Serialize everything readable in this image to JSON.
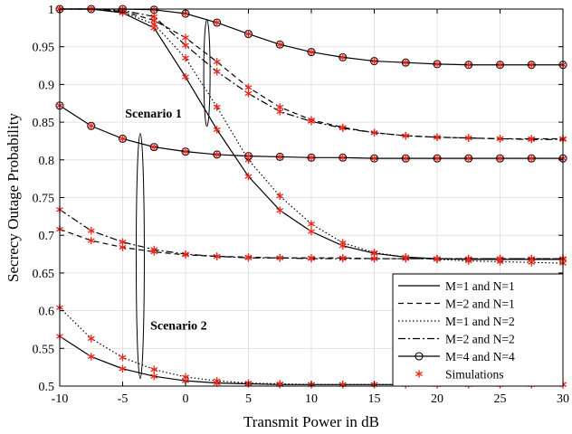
{
  "chart_data": {
    "type": "line",
    "title": "",
    "xlabel": "Transmit Power in dB",
    "ylabel": "Secrecy Outage Probability",
    "xlim": [
      -10,
      30
    ],
    "ylim": [
      0.5,
      1.0
    ],
    "xticks": [
      -10,
      -5,
      0,
      5,
      10,
      15,
      20,
      25,
      30
    ],
    "yticks": [
      0.5,
      0.55,
      0.6,
      0.65,
      0.7,
      0.75,
      0.8,
      0.85,
      0.9,
      0.95,
      1.0
    ],
    "xtick_labels": [
      "-10",
      "-5",
      "0",
      "5",
      "10",
      "15",
      "20",
      "25",
      "30"
    ],
    "ytick_labels": [
      "0.5",
      "0.55",
      "0.6",
      "0.65",
      "0.7",
      "0.75",
      "0.8",
      "0.85",
      "0.9",
      "0.95",
      "1"
    ],
    "grid": true,
    "legend_position": "bottom-right",
    "legend": [
      {
        "label": "M=1 and N=1",
        "style": "solid",
        "marker": "none"
      },
      {
        "label": "M=2 and N=1",
        "style": "dashed",
        "marker": "none"
      },
      {
        "label": "M=1 and N=2",
        "style": "dotted",
        "marker": "none"
      },
      {
        "label": "M=2 and N=2",
        "style": "dashdot",
        "marker": "none"
      },
      {
        "label": "M=4 and N=4",
        "style": "solid",
        "marker": "circle"
      },
      {
        "label": "Simulations",
        "style": "none",
        "marker": "asterisk"
      }
    ],
    "annotations": [
      "Scenario 1",
      "Scenario 2"
    ],
    "series": [
      {
        "legend_index": 0,
        "group": "Scenario 1",
        "style": "solid",
        "marker": "none",
        "x": [
          -10,
          -7.5,
          -5,
          -2.5,
          0,
          2.5,
          5,
          7.5,
          10,
          12.5,
          15,
          17.5,
          20,
          22.5,
          25,
          27.5,
          30
        ],
        "y": [
          1.0,
          1.0,
          0.995,
          0.975,
          0.91,
          0.84,
          0.778,
          0.733,
          0.705,
          0.686,
          0.676,
          0.671,
          0.669,
          0.668,
          0.668,
          0.668,
          0.668
        ]
      },
      {
        "legend_index": 1,
        "group": "Scenario 1",
        "style": "dashed",
        "marker": "none",
        "x": [
          -10,
          -7.5,
          -5,
          -2.5,
          0,
          2.5,
          5,
          7.5,
          10,
          12.5,
          15,
          17.5,
          20,
          22.5,
          25,
          27.5,
          30
        ],
        "y": [
          1.0,
          1.0,
          0.997,
          0.985,
          0.962,
          0.93,
          0.896,
          0.87,
          0.853,
          0.843,
          0.836,
          0.832,
          0.83,
          0.829,
          0.828,
          0.828,
          0.828
        ]
      },
      {
        "legend_index": 2,
        "group": "Scenario 1",
        "style": "dotted",
        "marker": "none",
        "x": [
          -10,
          -7.5,
          -5,
          -2.5,
          0,
          2.5,
          5,
          7.5,
          10,
          12.5,
          15,
          17.5,
          20,
          22.5,
          25,
          27.5,
          30
        ],
        "y": [
          1.0,
          1.0,
          0.996,
          0.98,
          0.935,
          0.87,
          0.8,
          0.752,
          0.715,
          0.69,
          0.677,
          0.671,
          0.668,
          0.666,
          0.665,
          0.664,
          0.663
        ]
      },
      {
        "legend_index": 3,
        "group": "Scenario 1",
        "style": "dashdot",
        "marker": "none",
        "x": [
          -10,
          -7.5,
          -5,
          -2.5,
          0,
          2.5,
          5,
          7.5,
          10,
          12.5,
          15,
          17.5,
          20,
          22.5,
          25,
          27.5,
          30
        ],
        "y": [
          1.0,
          1.0,
          0.998,
          0.99,
          0.952,
          0.917,
          0.888,
          0.864,
          0.851,
          0.842,
          0.836,
          0.832,
          0.83,
          0.829,
          0.828,
          0.827,
          0.827
        ]
      },
      {
        "legend_index": 4,
        "group": "Scenario 1",
        "style": "solid",
        "marker": "circle",
        "x": [
          -10,
          -7.5,
          -5,
          -2.5,
          0,
          2.5,
          5,
          7.5,
          10,
          12.5,
          15,
          17.5,
          20,
          22.5,
          25,
          27.5,
          30
        ],
        "y": [
          1.0,
          1.0,
          1.0,
          0.999,
          0.994,
          0.982,
          0.967,
          0.953,
          0.943,
          0.936,
          0.931,
          0.929,
          0.927,
          0.926,
          0.926,
          0.926,
          0.926
        ]
      },
      {
        "legend_index": 0,
        "group": "Scenario 2",
        "style": "solid",
        "marker": "none",
        "x": [
          -10,
          -7.5,
          -5,
          -2.5,
          0,
          2.5,
          5,
          7.5,
          10,
          12.5,
          15,
          17.5,
          20,
          22.5,
          25,
          27.5,
          30
        ],
        "y": [
          0.566,
          0.539,
          0.523,
          0.513,
          0.507,
          0.504,
          0.503,
          0.502,
          0.502,
          0.502,
          0.502,
          0.502,
          0.502,
          0.502,
          0.502,
          0.502,
          0.502
        ]
      },
      {
        "legend_index": 2,
        "group": "Scenario 2",
        "style": "dotted",
        "marker": "none",
        "x": [
          -10,
          -7.5,
          -5,
          -2.5,
          0,
          2.5,
          5,
          7.5,
          10,
          12.5,
          15,
          17.5,
          20,
          22.5,
          25,
          27.5,
          30
        ],
        "y": [
          0.604,
          0.563,
          0.538,
          0.522,
          0.512,
          0.507,
          0.504,
          0.503,
          0.502,
          0.502,
          0.502,
          0.502,
          0.502,
          0.502,
          0.502,
          0.502,
          0.502
        ]
      },
      {
        "legend_index": 1,
        "group": "Scenario 2",
        "style": "dashed",
        "marker": "none",
        "x": [
          -10,
          -7.5,
          -5,
          -2.5,
          0,
          2.5,
          5,
          7.5,
          10,
          12.5,
          15,
          17.5,
          20,
          22.5,
          25,
          27.5,
          30
        ],
        "y": [
          0.708,
          0.693,
          0.684,
          0.678,
          0.674,
          0.672,
          0.671,
          0.67,
          0.67,
          0.67,
          0.669,
          0.669,
          0.669,
          0.669,
          0.669,
          0.669,
          0.669
        ]
      },
      {
        "legend_index": 3,
        "group": "Scenario 2",
        "style": "dashdot",
        "marker": "none",
        "x": [
          -10,
          -7.5,
          -5,
          -2.5,
          0,
          2.5,
          5,
          7.5,
          10,
          12.5,
          15,
          17.5,
          20,
          22.5,
          25,
          27.5,
          30
        ],
        "y": [
          0.734,
          0.706,
          0.691,
          0.681,
          0.675,
          0.672,
          0.67,
          0.67,
          0.669,
          0.669,
          0.669,
          0.669,
          0.669,
          0.669,
          0.669,
          0.669,
          0.669
        ]
      },
      {
        "legend_index": 4,
        "group": "Scenario 2",
        "style": "solid",
        "marker": "circle",
        "x": [
          -10,
          -7.5,
          -5,
          -2.5,
          0,
          2.5,
          5,
          7.5,
          10,
          12.5,
          15,
          17.5,
          20,
          22.5,
          25,
          27.5,
          30
        ],
        "y": [
          0.872,
          0.845,
          0.828,
          0.817,
          0.811,
          0.807,
          0.805,
          0.804,
          0.803,
          0.803,
          0.802,
          0.802,
          0.802,
          0.802,
          0.802,
          0.802,
          0.802
        ]
      }
    ]
  },
  "colors": {
    "line": "#000000",
    "simulation_marker": "#e8281e",
    "grid": "#dedede",
    "background": "#ffffff"
  }
}
